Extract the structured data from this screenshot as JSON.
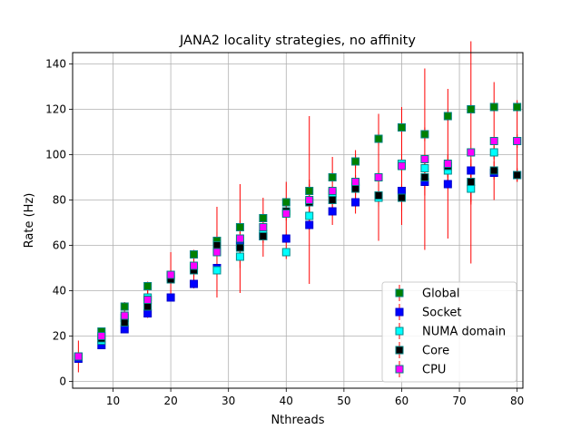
{
  "chart_data": {
    "type": "scatter",
    "title": "JANA2 locality strategies, no affinity",
    "xlabel": "Nthreads",
    "ylabel": "Rate (Hz)",
    "xlim": [
      3,
      81
    ],
    "ylim": [
      -3,
      145
    ],
    "xticks": [
      10,
      20,
      30,
      40,
      50,
      60,
      70,
      80
    ],
    "yticks": [
      0,
      20,
      40,
      60,
      80,
      100,
      120,
      140
    ],
    "grid": true,
    "legend_position": "lower-right",
    "error_bar_color": "#ff0000",
    "x": [
      4,
      8,
      12,
      16,
      20,
      24,
      28,
      32,
      36,
      40,
      44,
      48,
      52,
      56,
      60,
      64,
      68,
      72,
      76,
      80
    ],
    "series": [
      {
        "name": "Global",
        "color": "#008000",
        "edge": "#008080",
        "values": [
          11,
          22,
          33,
          42,
          47,
          56,
          62,
          68,
          72,
          79,
          84,
          90,
          97,
          107,
          112,
          109,
          117,
          120,
          121,
          121
        ],
        "errors": [
          1,
          1,
          2,
          2,
          1,
          2,
          4,
          3,
          2,
          2,
          3,
          2,
          3,
          3,
          2,
          3,
          2,
          2,
          2,
          2
        ]
      },
      {
        "name": "Socket",
        "color": "#0000ff",
        "edge": "#0000cc",
        "values": [
          10,
          16,
          23,
          30,
          37,
          43,
          50,
          60,
          64,
          63,
          69,
          75,
          79,
          82,
          84,
          88,
          87,
          93,
          92,
          91
        ],
        "errors": [
          1,
          1,
          1,
          2,
          1,
          2,
          2,
          2,
          2,
          2,
          2,
          2,
          2,
          2,
          3,
          3,
          2,
          3,
          2,
          2
        ]
      },
      {
        "name": "NUMA domain",
        "color": "#00ffff",
        "edge": "#008b8b",
        "values": [
          11,
          18,
          28,
          37,
          46,
          50,
          49,
          55,
          65,
          57,
          73,
          83,
          86,
          81,
          96,
          94,
          93,
          85,
          101,
          106
        ],
        "errors": [
          1,
          1,
          2,
          3,
          3,
          3,
          3,
          5,
          3,
          3,
          5,
          3,
          4,
          3,
          4,
          5,
          5,
          6,
          3,
          3
        ]
      },
      {
        "name": "Core",
        "color": "#000000",
        "edge": "#008080",
        "values": [
          11,
          19,
          26,
          33,
          45,
          49,
          60,
          59,
          64,
          75,
          79,
          80,
          85,
          82,
          81,
          90,
          95,
          88,
          93,
          91
        ],
        "errors": [
          1,
          1,
          2,
          3,
          2,
          3,
          4,
          5,
          3,
          4,
          10,
          5,
          6,
          5,
          6,
          8,
          5,
          10,
          4,
          3
        ]
      },
      {
        "name": "CPU",
        "color": "#ff00ff",
        "edge": "#008080",
        "values": [
          11,
          20,
          29,
          36,
          47,
          51,
          57,
          63,
          68,
          74,
          80,
          84,
          88,
          90,
          95,
          98,
          96,
          101,
          106,
          106
        ],
        "errors": [
          7,
          3,
          4,
          6,
          10,
          7,
          20,
          24,
          13,
          14,
          37,
          15,
          14,
          28,
          26,
          40,
          33,
          49,
          26,
          18
        ]
      }
    ]
  }
}
